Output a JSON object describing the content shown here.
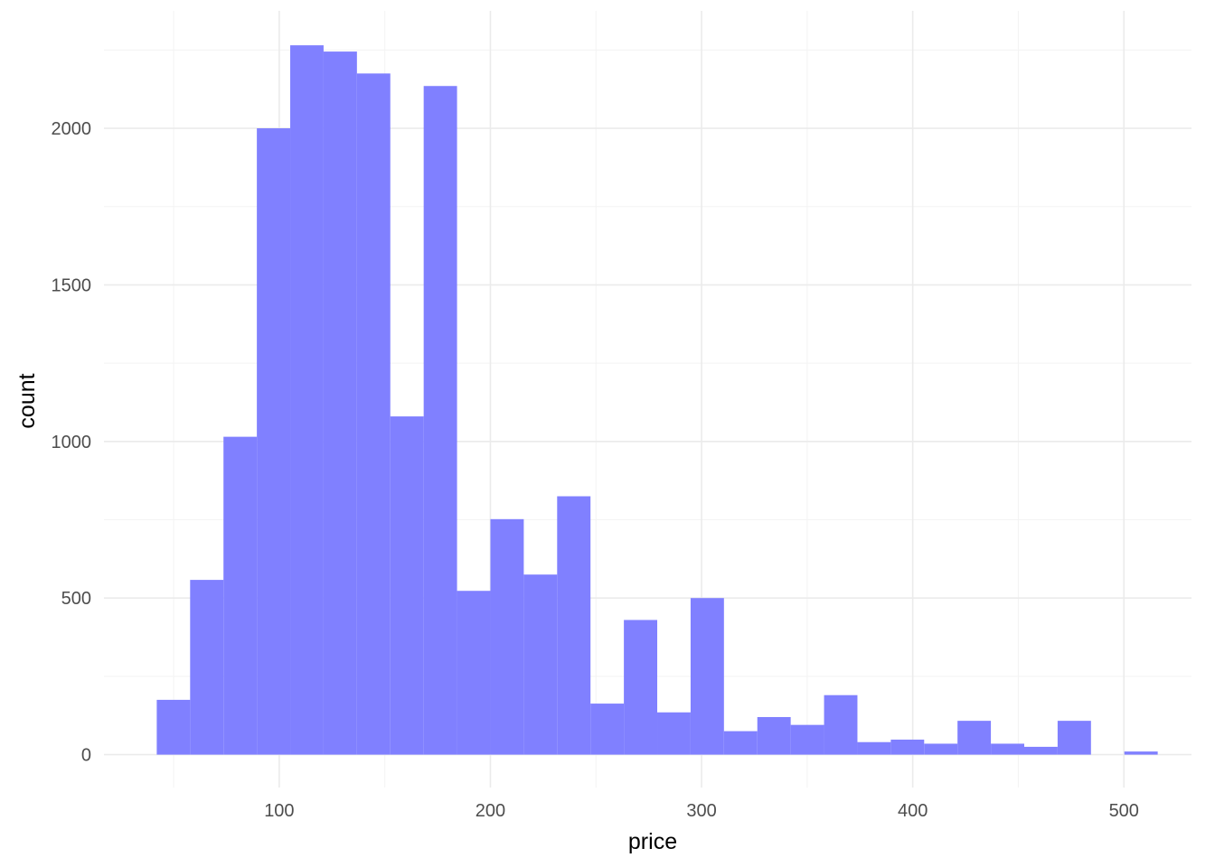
{
  "chart_data": {
    "type": "bar",
    "subtype": "histogram",
    "title": "",
    "xlabel": "price",
    "ylabel": "count",
    "xlim": [
      17,
      532
    ],
    "ylim": [
      -105,
      2375
    ],
    "x_ticks": [
      100,
      200,
      300,
      400,
      500
    ],
    "y_ticks": [
      0,
      500,
      1000,
      1500,
      2000
    ],
    "grid": true,
    "fill_color": "#8080ff",
    "bin_width": 15.8,
    "bins": [
      {
        "x0": 42.0,
        "x1": 57.8,
        "count": 175
      },
      {
        "x0": 57.8,
        "x1": 73.6,
        "count": 558
      },
      {
        "x0": 73.6,
        "x1": 89.4,
        "count": 1015
      },
      {
        "x0": 89.4,
        "x1": 105.2,
        "count": 2000
      },
      {
        "x0": 105.2,
        "x1": 121.0,
        "count": 2265
      },
      {
        "x0": 121.0,
        "x1": 136.8,
        "count": 2245
      },
      {
        "x0": 136.8,
        "x1": 152.6,
        "count": 2175
      },
      {
        "x0": 152.6,
        "x1": 168.4,
        "count": 1080
      },
      {
        "x0": 168.4,
        "x1": 184.2,
        "count": 2135
      },
      {
        "x0": 184.2,
        "x1": 200.0,
        "count": 523
      },
      {
        "x0": 200.0,
        "x1": 215.8,
        "count": 752
      },
      {
        "x0": 215.8,
        "x1": 231.6,
        "count": 575
      },
      {
        "x0": 231.6,
        "x1": 247.4,
        "count": 825
      },
      {
        "x0": 247.4,
        "x1": 263.2,
        "count": 163
      },
      {
        "x0": 263.2,
        "x1": 279.0,
        "count": 430
      },
      {
        "x0": 279.0,
        "x1": 294.8,
        "count": 135
      },
      {
        "x0": 294.8,
        "x1": 310.6,
        "count": 500
      },
      {
        "x0": 310.6,
        "x1": 326.4,
        "count": 75
      },
      {
        "x0": 326.4,
        "x1": 342.2,
        "count": 120
      },
      {
        "x0": 342.2,
        "x1": 358.0,
        "count": 95
      },
      {
        "x0": 358.0,
        "x1": 373.8,
        "count": 190
      },
      {
        "x0": 373.8,
        "x1": 389.6,
        "count": 40
      },
      {
        "x0": 389.6,
        "x1": 405.4,
        "count": 48
      },
      {
        "x0": 405.4,
        "x1": 421.2,
        "count": 35
      },
      {
        "x0": 421.2,
        "x1": 437.0,
        "count": 108
      },
      {
        "x0": 437.0,
        "x1": 452.8,
        "count": 35
      },
      {
        "x0": 452.8,
        "x1": 468.6,
        "count": 25
      },
      {
        "x0": 468.6,
        "x1": 484.4,
        "count": 108
      },
      {
        "x0": 484.4,
        "x1": 500.2,
        "count": 0
      },
      {
        "x0": 500.2,
        "x1": 516.0,
        "count": 10
      }
    ]
  }
}
